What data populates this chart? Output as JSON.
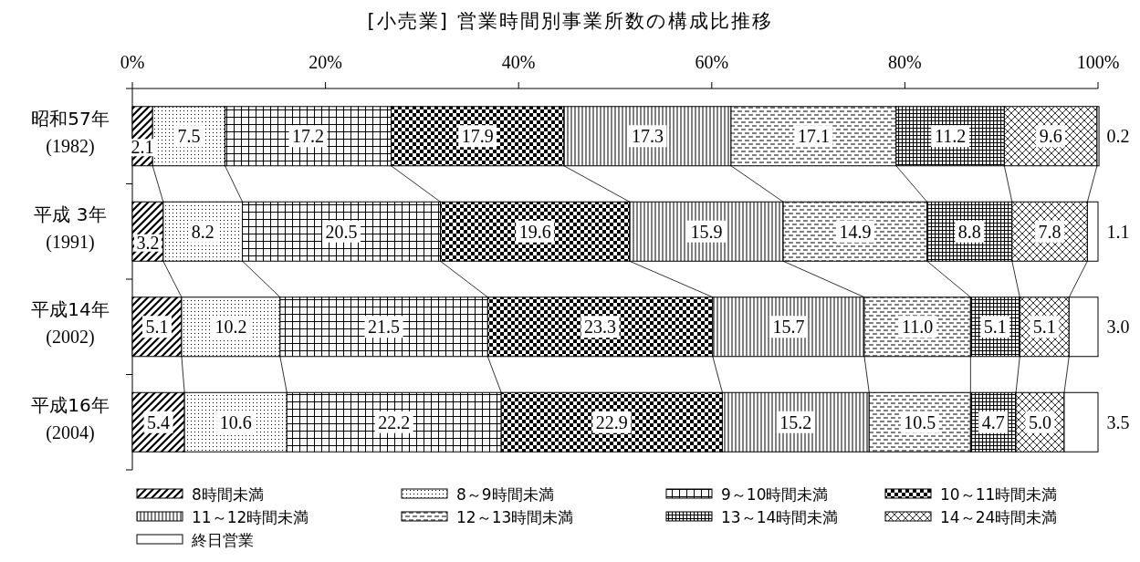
{
  "chart_data": {
    "type": "bar",
    "orientation": "horizontal",
    "stacked": true,
    "title": "[小売業] 営業時間別事業所数の構成比推移",
    "categories": [
      "昭和57年\n(1982)",
      "平成 3年\n(1991)",
      "平成14年\n(2002)",
      "平成16年\n(2004)"
    ],
    "xlim": [
      0,
      100
    ],
    "xticks": [
      {
        "value": 0,
        "label": "0%"
      },
      {
        "value": 20,
        "label": "20%"
      },
      {
        "value": 40,
        "label": "40%"
      },
      {
        "value": 60,
        "label": "60%"
      },
      {
        "value": 80,
        "label": "80%"
      },
      {
        "value": 100,
        "label": "100%"
      }
    ],
    "legend": "bottom",
    "grid": false,
    "series": [
      {
        "name": "8時間未満",
        "color": "#000000",
        "values": [
          2.1,
          3.2,
          5.1,
          5.4
        ],
        "value_labels": [
          "2.1",
          "3.2",
          "5.1",
          "5.4"
        ]
      },
      {
        "name": "8～9時間未満",
        "color": "#000000",
        "values": [
          7.5,
          8.2,
          10.2,
          10.6
        ],
        "value_labels": [
          "7.5",
          "8.2",
          "10.2",
          "10.6"
        ]
      },
      {
        "name": "9～10時間未満",
        "color": "#000000",
        "values": [
          17.2,
          20.5,
          21.5,
          22.2
        ],
        "value_labels": [
          "17.2",
          "20.5",
          "21.5",
          "22.2"
        ]
      },
      {
        "name": "10～11時間未満",
        "color": "#000000",
        "values": [
          17.9,
          19.6,
          23.3,
          22.9
        ],
        "value_labels": [
          "17.9",
          "19.6",
          "23.3",
          "22.9"
        ]
      },
      {
        "name": "11～12時間未満",
        "color": "#000000",
        "values": [
          17.3,
          15.9,
          15.7,
          15.2
        ],
        "value_labels": [
          "17.3",
          "15.9",
          "15.7",
          "15.2"
        ]
      },
      {
        "name": "12～13時間未満",
        "color": "#000000",
        "values": [
          17.1,
          14.9,
          11.0,
          10.5
        ],
        "value_labels": [
          "17.1",
          "14.9",
          "11.0",
          "10.5"
        ]
      },
      {
        "name": "13～14時間未満",
        "color": "#000000",
        "values": [
          11.2,
          8.8,
          5.1,
          4.7
        ],
        "value_labels": [
          "11.2",
          "8.8",
          "5.1",
          "4.7"
        ]
      },
      {
        "name": "14～24時間未満",
        "color": "#000000",
        "values": [
          9.6,
          7.8,
          5.1,
          5.0
        ],
        "value_labels": [
          "9.6",
          "7.8",
          "5.1",
          "5.0"
        ]
      },
      {
        "name": "終日営業",
        "color": "#ffffff",
        "values": [
          0.2,
          1.1,
          3.0,
          3.5
        ],
        "value_labels": [
          "0.2",
          "1.1",
          "3.0",
          "3.5"
        ]
      }
    ]
  }
}
